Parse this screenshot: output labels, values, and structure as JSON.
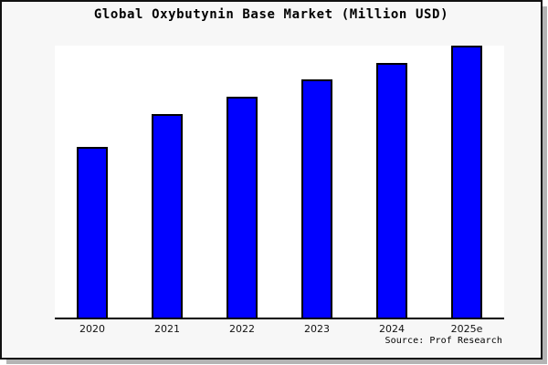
{
  "title": "Global Oxybutynin Base Market (Million USD)",
  "source_note": "Source: Prof Research",
  "colors": {
    "bar_fill": "#0000ff",
    "bar_border": "#000000",
    "canvas_background": "#f7f7f7",
    "plot_background": "#ffffff",
    "frame_border": "#111111",
    "frame_shadow": "#b4b4b4",
    "text": "#000000"
  },
  "chart_data": {
    "type": "bar",
    "title": "Global Oxybutynin Base Market (Million USD)",
    "categories": [
      "2020",
      "2021",
      "2022",
      "2023",
      "2024",
      "2025e"
    ],
    "values": [
      62.7,
      75.0,
      81.3,
      87.7,
      93.7,
      100.0
    ],
    "xlabel": "",
    "ylabel": "",
    "ylim": [
      0,
      100
    ],
    "y_axis_labels_visible": false,
    "gridlines": false,
    "legend": false,
    "annotation": "Source: Prof Research",
    "note": "No numeric y-axis shown in image; values are relative bar heights as % of tallest bar (2025e)."
  }
}
